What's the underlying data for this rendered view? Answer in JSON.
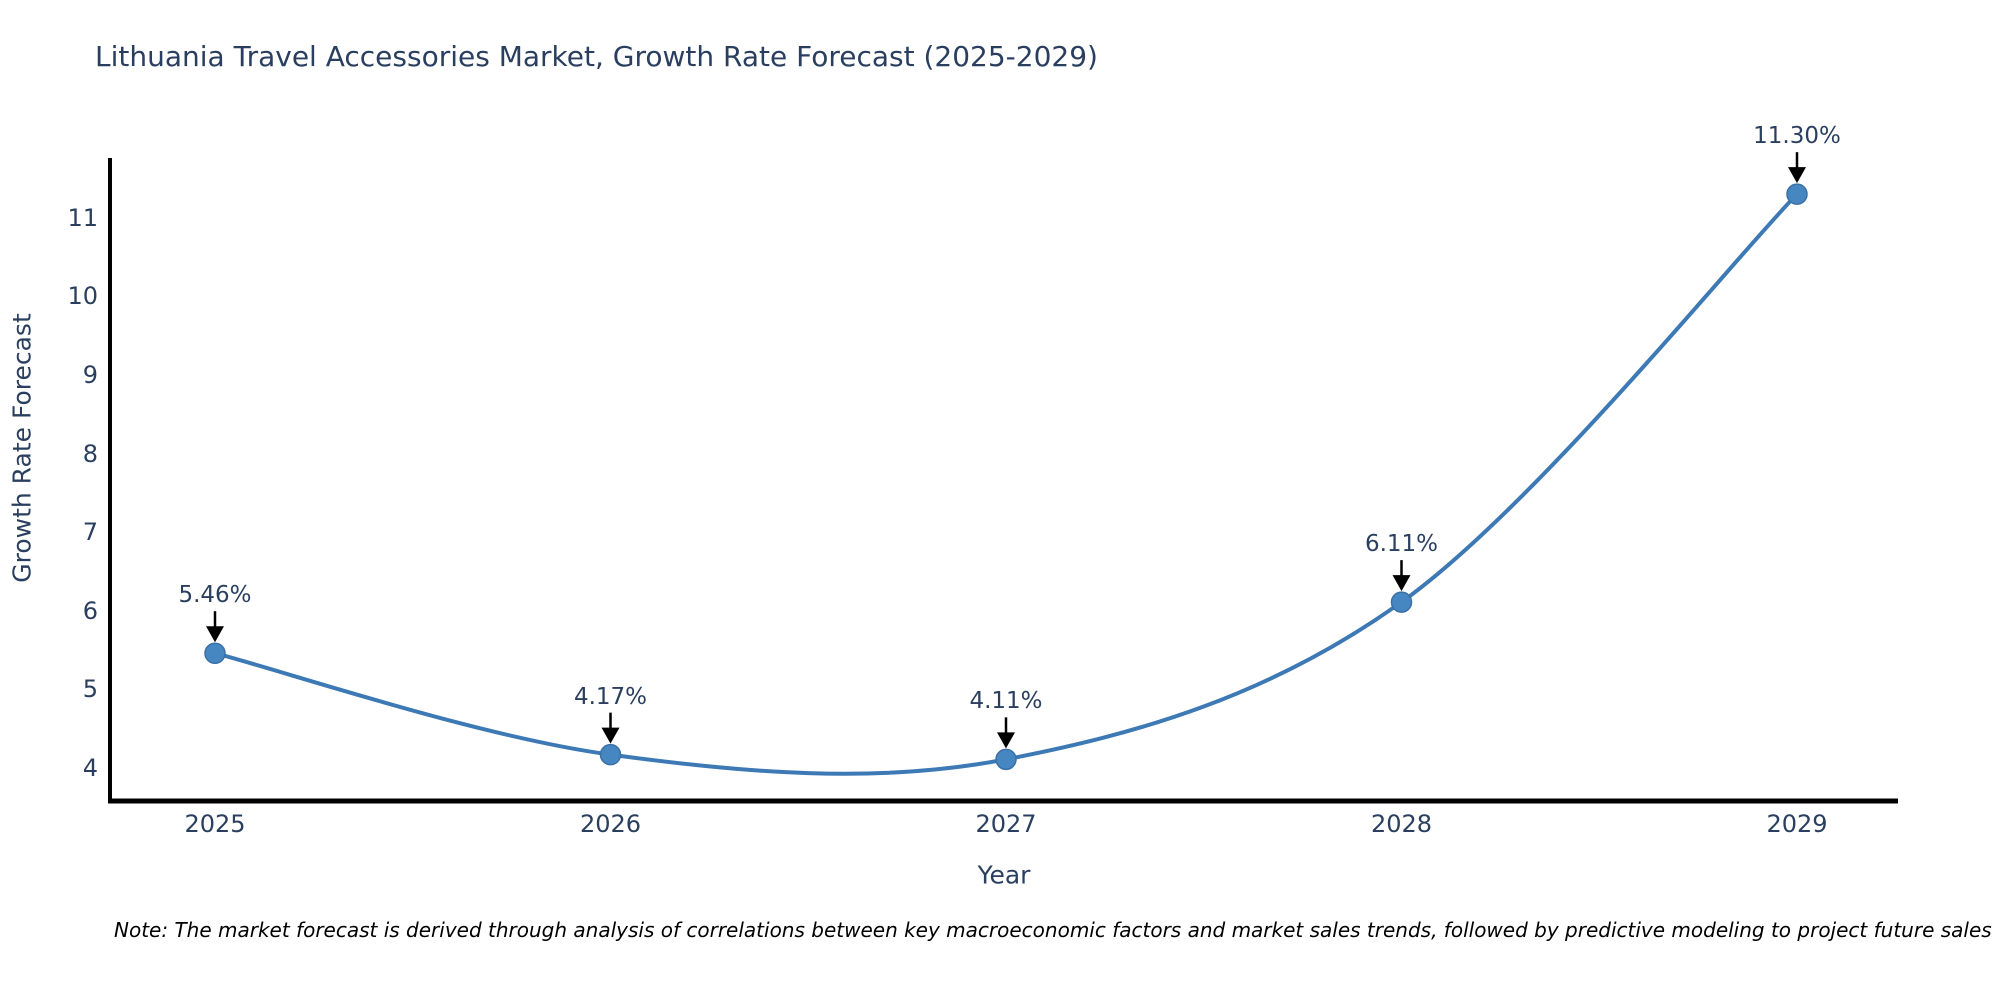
{
  "title": "Lithuania Travel Accessories Market, Growth Rate Forecast (2025-2029)",
  "note": "Note: The market forecast is derived through analysis of correlations between key macroeconomic factors and market sales trends, followed by predictive modeling to project future sales",
  "chart_data": {
    "type": "line",
    "line_shape": "spline",
    "title": "Lithuania Travel Accessories Market, Growth Rate Forecast (2025-2029)",
    "xlabel": "Year",
    "ylabel": "Growth Rate Forecast",
    "categories": [
      "2025",
      "2026",
      "2027",
      "2028",
      "2029"
    ],
    "values": [
      5.46,
      4.17,
      4.11,
      6.11,
      11.3
    ],
    "point_labels": [
      "5.46%",
      "4.17%",
      "4.11%",
      "6.11%",
      "11.30%"
    ],
    "yticks": [
      4,
      5,
      6,
      7,
      8,
      9,
      10,
      11
    ],
    "ylim": [
      3.58,
      11.76
    ],
    "grid": false,
    "legend": "none",
    "colors": {
      "line": "#3c79b5",
      "marker_fill": "#4787c1",
      "marker_edge": "#3a70a8",
      "axis": "#000000",
      "tick_text": "#2a3f5f",
      "annotation_text": "#2a3f5f",
      "annotation_arrow": "#000000"
    }
  }
}
